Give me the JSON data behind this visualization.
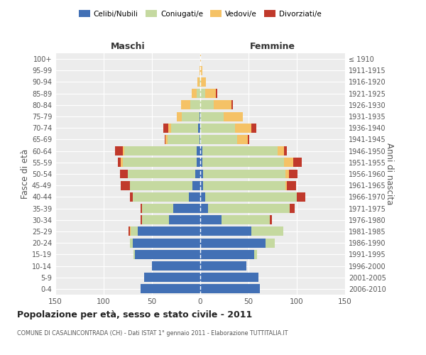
{
  "age_groups": [
    "0-4",
    "5-9",
    "10-14",
    "15-19",
    "20-24",
    "25-29",
    "30-34",
    "35-39",
    "40-44",
    "45-49",
    "50-54",
    "55-59",
    "60-64",
    "65-69",
    "70-74",
    "75-79",
    "80-84",
    "85-89",
    "90-94",
    "95-99",
    "100+"
  ],
  "birth_years": [
    "2006-2010",
    "2001-2005",
    "1996-2000",
    "1991-1995",
    "1986-1990",
    "1981-1985",
    "1976-1980",
    "1971-1975",
    "1966-1970",
    "1961-1965",
    "1956-1960",
    "1951-1955",
    "1946-1950",
    "1941-1945",
    "1936-1940",
    "1931-1935",
    "1926-1930",
    "1921-1925",
    "1916-1920",
    "1911-1915",
    "≤ 1910"
  ],
  "colors": {
    "celibi_nubili": "#4270b5",
    "coniugati": "#c5d9a0",
    "vedovi": "#f5c266",
    "divorziati": "#c0392b"
  },
  "title": "Popolazione per età, sesso e stato civile - 2011",
  "subtitle": "COMUNE DI CASALINCONTRADA (CH) - Dati ISTAT 1° gennaio 2011 - Elaborazione TUTTITALIA.IT",
  "xlabel_left": "Maschi",
  "xlabel_right": "Femmine",
  "ylabel_left": "Fasce di età",
  "ylabel_right": "Anni di nascita",
  "xlim": 150,
  "background_color": "#ffffff",
  "grid_color": "#cccccc",
  "male_celibi": [
    62,
    58,
    50,
    68,
    70,
    65,
    32,
    28,
    12,
    8,
    5,
    4,
    4,
    1,
    2,
    1,
    0,
    0,
    0,
    0,
    0
  ],
  "male_coniugati": [
    0,
    0,
    0,
    1,
    3,
    7,
    28,
    32,
    58,
    65,
    70,
    76,
    75,
    33,
    28,
    18,
    10,
    4,
    1,
    0,
    0
  ],
  "male_vedovi": [
    0,
    0,
    0,
    0,
    0,
    1,
    0,
    0,
    0,
    0,
    0,
    2,
    1,
    2,
    3,
    5,
    10,
    5,
    2,
    1,
    0
  ],
  "male_divorziati": [
    0,
    0,
    0,
    0,
    0,
    1,
    2,
    2,
    3,
    9,
    8,
    3,
    8,
    1,
    5,
    0,
    0,
    0,
    0,
    0,
    0
  ],
  "female_nubili": [
    62,
    60,
    48,
    56,
    68,
    53,
    22,
    8,
    5,
    3,
    3,
    2,
    2,
    0,
    0,
    0,
    0,
    0,
    0,
    0,
    0
  ],
  "female_coniugate": [
    0,
    0,
    0,
    3,
    9,
    33,
    50,
    85,
    95,
    85,
    85,
    85,
    78,
    38,
    36,
    24,
    14,
    5,
    1,
    0,
    0
  ],
  "female_vedove": [
    0,
    0,
    0,
    0,
    0,
    0,
    0,
    0,
    0,
    2,
    4,
    9,
    7,
    11,
    17,
    20,
    18,
    11,
    5,
    2,
    1
  ],
  "female_divorziate": [
    0,
    0,
    0,
    0,
    0,
    0,
    2,
    5,
    9,
    9,
    9,
    9,
    3,
    2,
    5,
    0,
    2,
    2,
    0,
    0,
    0
  ]
}
